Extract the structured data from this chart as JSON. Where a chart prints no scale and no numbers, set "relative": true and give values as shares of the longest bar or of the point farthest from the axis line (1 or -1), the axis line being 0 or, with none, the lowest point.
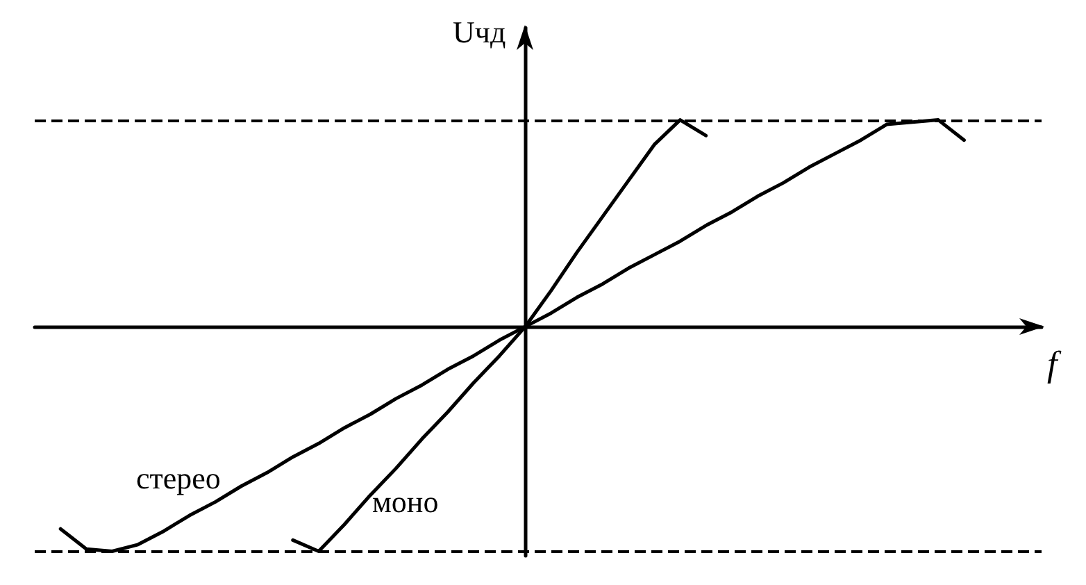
{
  "chart_data": {
    "type": "line",
    "relative": true,
    "xlabel": "f",
    "ylabel": "Uчд",
    "categories": [
      null,
      null,
      null,
      null,
      null,
      null,
      null,
      null,
      null,
      null,
      null,
      null,
      null,
      null,
      null,
      null,
      null,
      null,
      null,
      null,
      null,
      null,
      null,
      null,
      null,
      null,
      null,
      null,
      null,
      null,
      null,
      null,
      null,
      null,
      null,
      null,
      null,
      null,
      null,
      null
    ],
    "grid": false,
    "legend": false,
    "marker": "none",
    "line_style": "solid",
    "series": [
      {
        "name": "стерео",
        "color": "#000000",
        "values": [
          null,
          -0.9,
          -0.99,
          -1.0,
          -0.97,
          -0.91,
          -0.84,
          -0.78,
          -0.71,
          -0.65,
          -0.58,
          -0.52,
          -0.45,
          -0.39,
          -0.32,
          -0.26,
          -0.19,
          -0.13,
          -0.06,
          0,
          0.06,
          0.13,
          0.19,
          0.26,
          0.32,
          0.38,
          0.45,
          0.51,
          0.58,
          0.64,
          0.71,
          0.77,
          0.83,
          0.9,
          0.91,
          0.92,
          0.83,
          null,
          null,
          null
        ]
      },
      {
        "name": "моно",
        "color": "#000000",
        "values": [
          null,
          null,
          null,
          null,
          null,
          null,
          null,
          null,
          null,
          null,
          -0.95,
          -1.0,
          -0.88,
          -0.75,
          -0.63,
          -0.5,
          -0.38,
          -0.25,
          -0.13,
          0,
          0.16,
          0.33,
          0.49,
          0.65,
          0.81,
          0.92,
          0.85,
          null,
          null,
          null,
          null,
          null,
          null,
          null,
          null,
          null,
          null,
          null,
          null,
          null
        ]
      }
    ],
    "ref_lines": [
      {
        "axis": "y",
        "value": 0.92,
        "line_style": "dashed",
        "color": "#000000"
      },
      {
        "axis": "y",
        "value": -1.0,
        "line_style": "dashed",
        "color": "#000000"
      }
    ]
  }
}
